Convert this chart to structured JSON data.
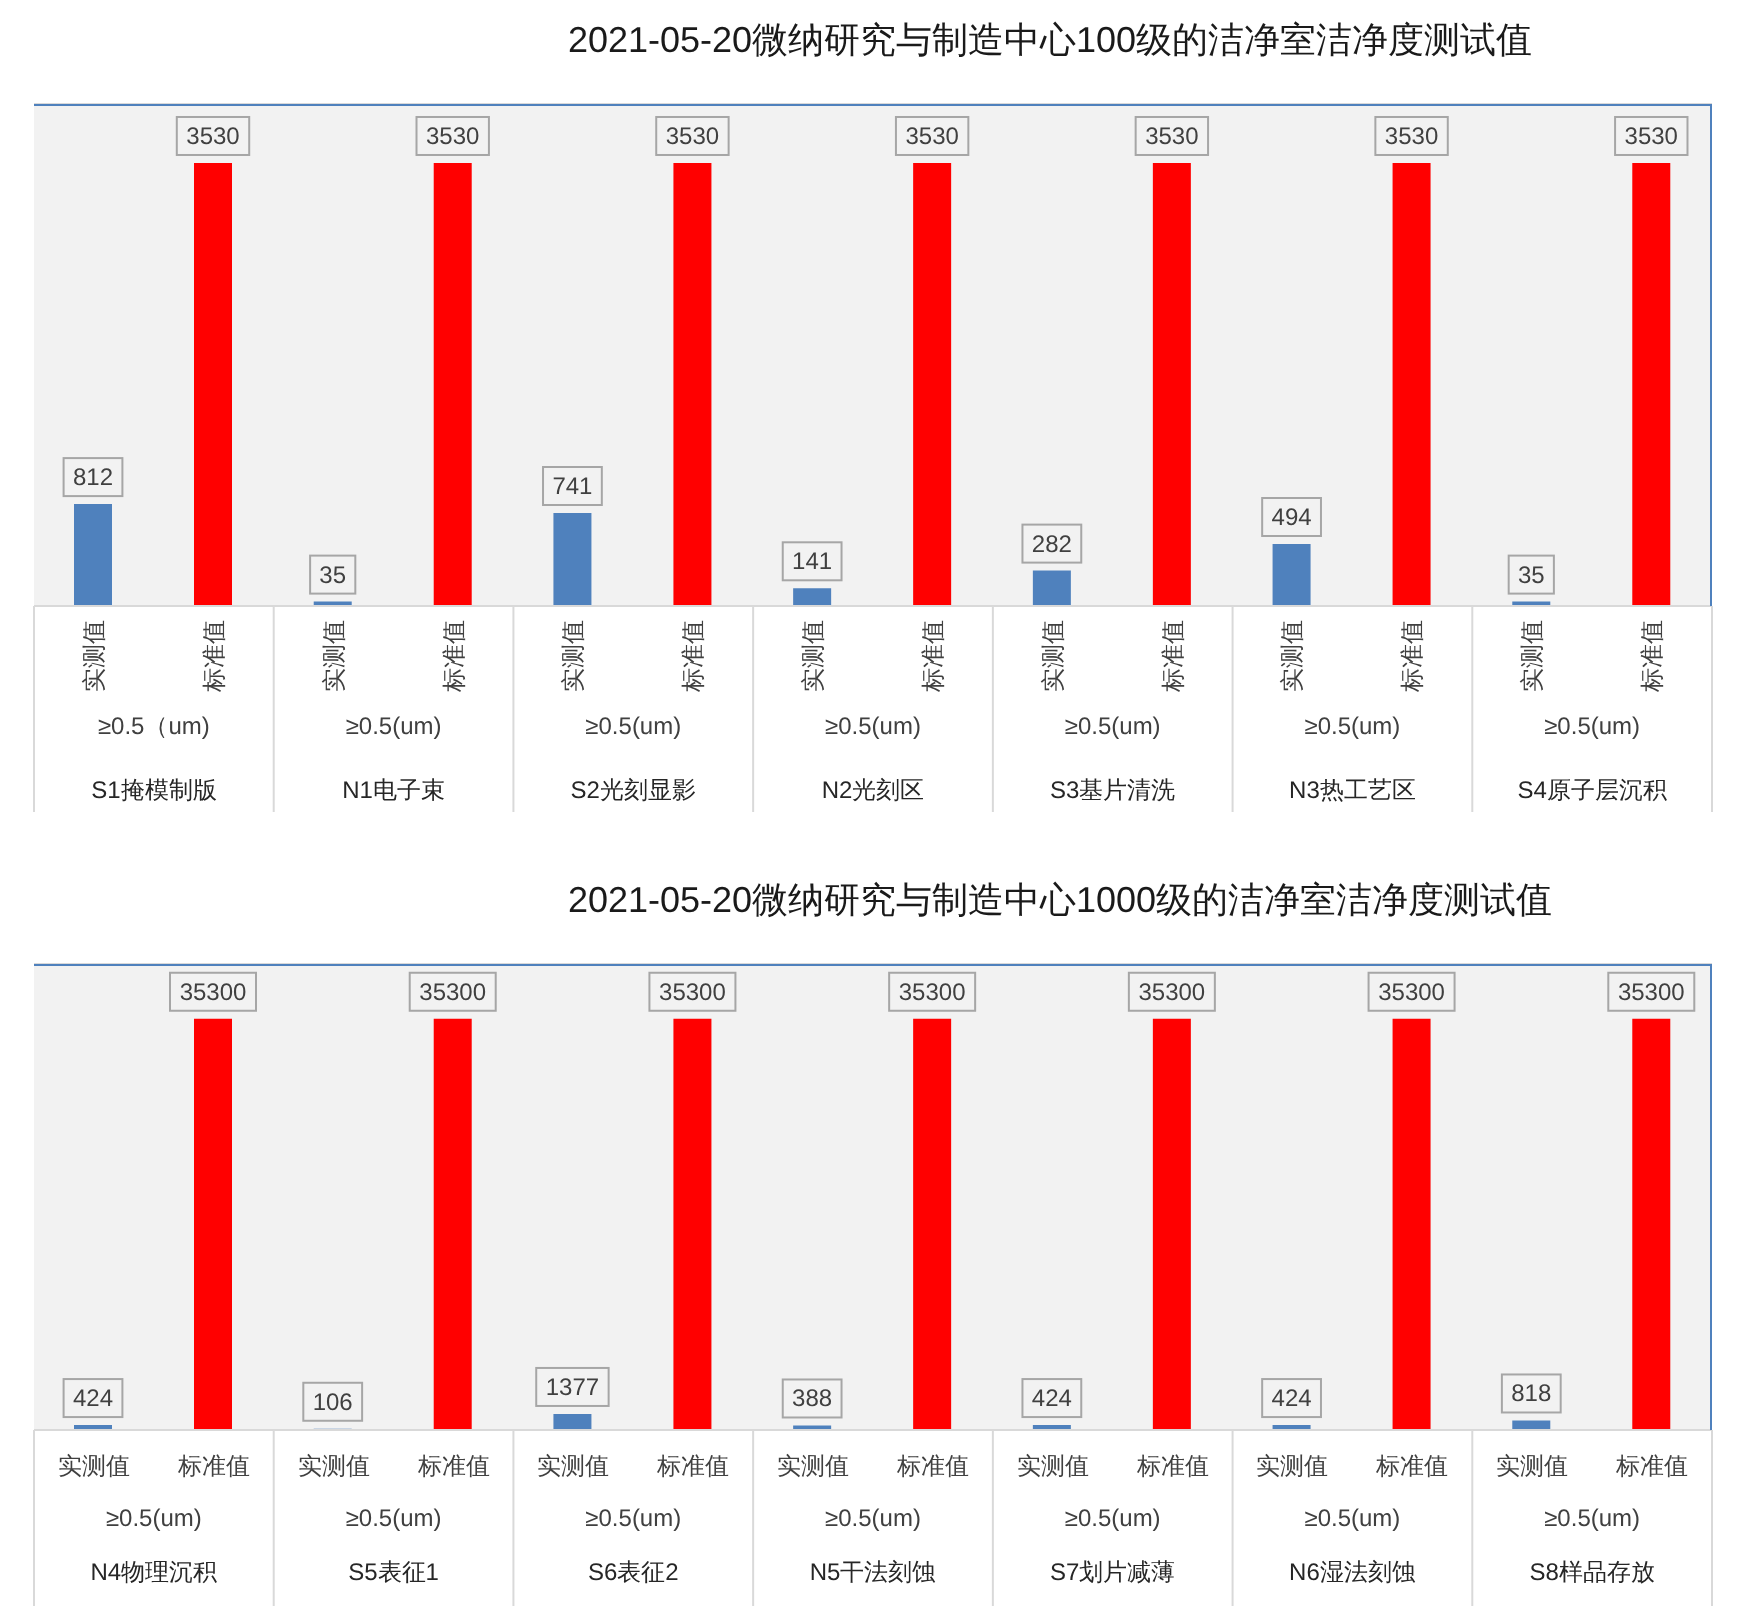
{
  "chart_data": [
    {
      "type": "bar",
      "title": "2021-05-20微纳研究与制造中心100级的洁净室洁净度测试值",
      "categories": [
        "S1掩模制版",
        "N1电子束",
        "S2光刻显影",
        "N2光刻区",
        "S3基片清洗",
        "N3热工艺区",
        "S4原子层沉积"
      ],
      "series": [
        {
          "name": "实测值",
          "color": "#4f81bd",
          "values": [
            812,
            35,
            741,
            141,
            282,
            494,
            35
          ]
        },
        {
          "name": "标准值",
          "color": "#ff0000",
          "values": [
            3530,
            3530,
            3530,
            3530,
            3530,
            3530,
            3530
          ]
        }
      ],
      "annotations": [
        "≥0.5（um)",
        "≥0.5(um)",
        "≥0.5(um)",
        "≥0.5(um)",
        "≥0.5(um)",
        "≥0.5(um)",
        "≥0.5(um)"
      ],
      "ylim": [
        0,
        4000
      ],
      "grid": "y",
      "tick_labels": "x",
      "data_labels": true
    },
    {
      "type": "bar",
      "title": "2021-05-20微纳研究与制造中心1000级的洁净室洁净度测试值",
      "categories": [
        "N4物理沉积",
        "S5表征1",
        "S6表征2",
        "N5干法刻蚀",
        "S7划片减薄",
        "N6湿法刻蚀",
        "S8样品存放"
      ],
      "series": [
        {
          "name": "实测值",
          "color": "#4f81bd",
          "values": [
            424,
            106,
            1377,
            388,
            424,
            424,
            818
          ]
        },
        {
          "name": "标准值",
          "color": "#ff0000",
          "values": [
            35300,
            35300,
            35300,
            35300,
            35300,
            35300,
            35300
          ]
        }
      ],
      "annotations": [
        "≥0.5(um)",
        "≥0.5(um)",
        "≥0.5(um)",
        "≥0.5(um)",
        "≥0.5(um)",
        "≥0.5(um)",
        "≥0.5(um)"
      ],
      "ylim": [
        0,
        40000
      ],
      "grid": "y",
      "tick_labels": "x",
      "data_labels": true
    }
  ]
}
